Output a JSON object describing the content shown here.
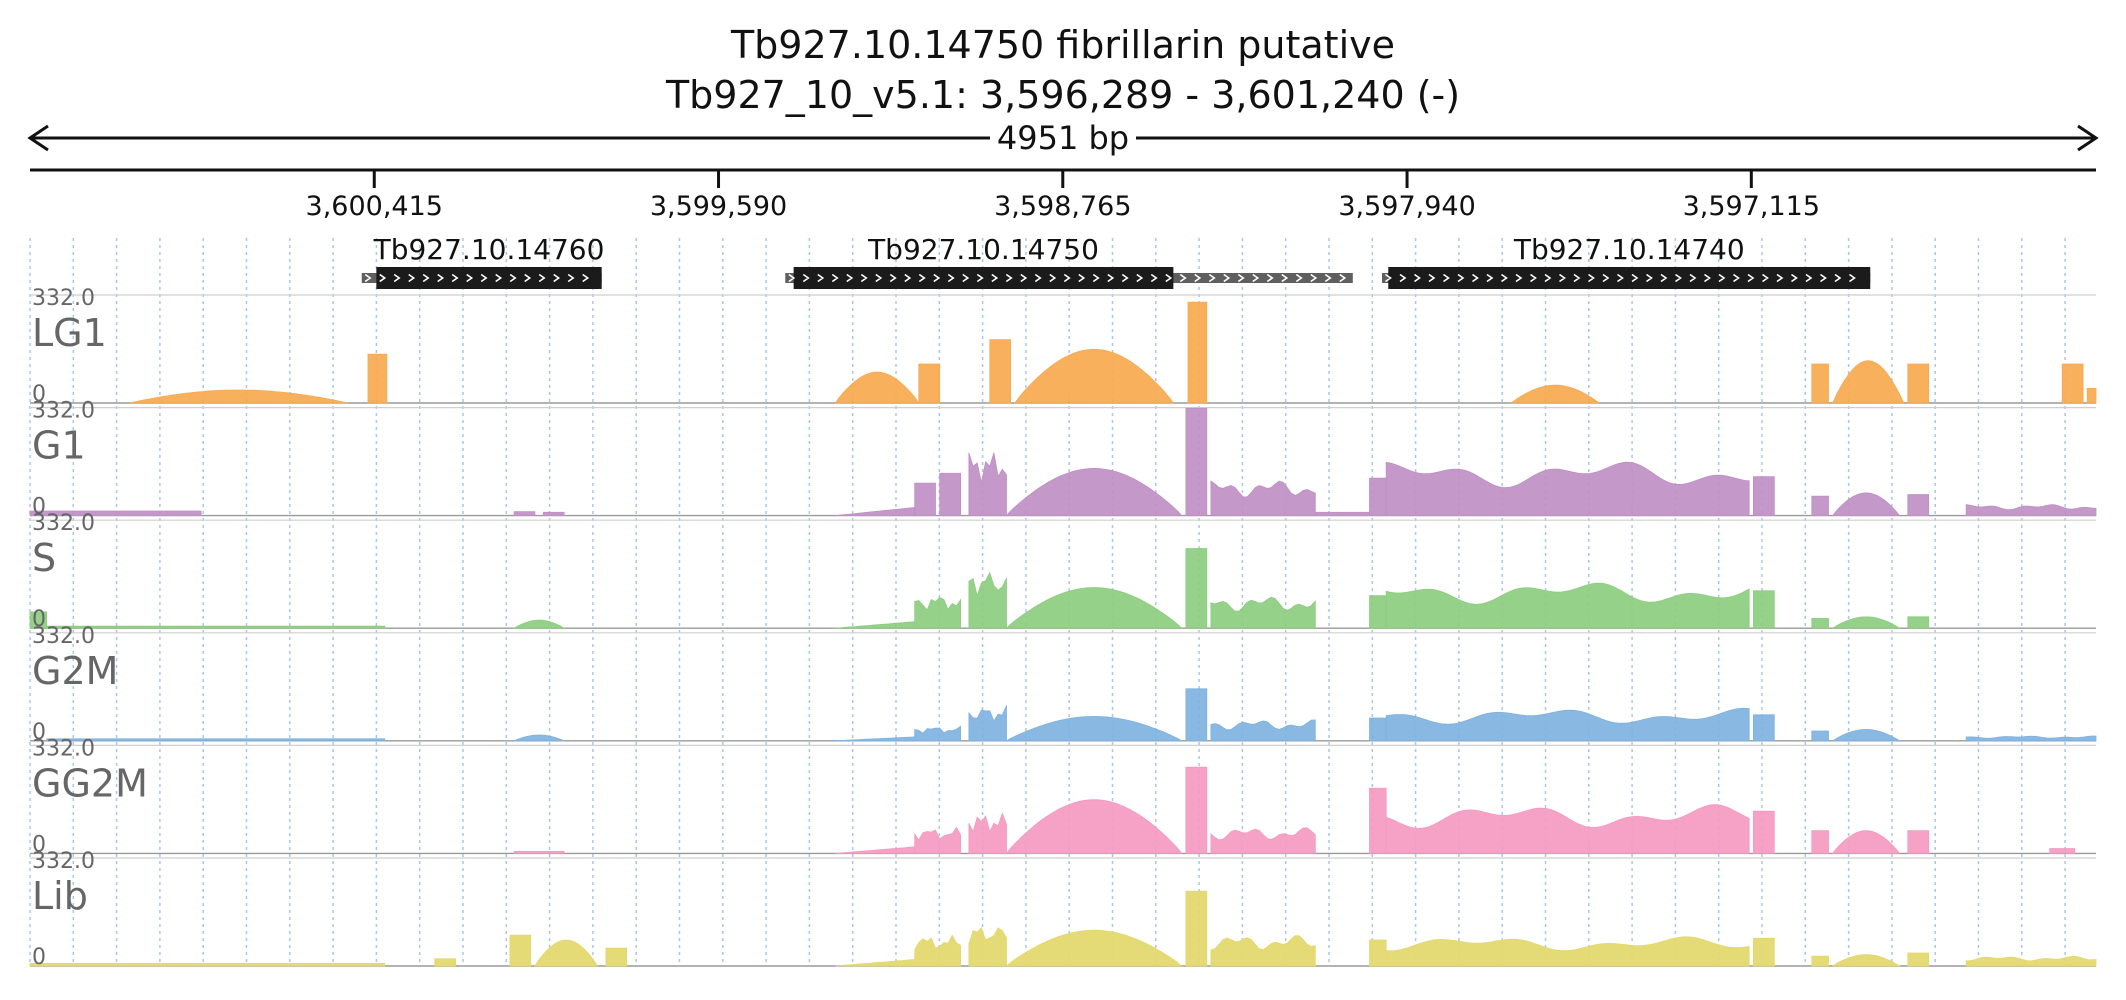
{
  "header": {
    "title_line1": "Tb927.10.14750  fibrillarin  putative",
    "title_line2": "Tb927_10_v5.1: 3,596,289 - 3,601,240 (-)",
    "span_label": "4951 bp"
  },
  "chart_data": {
    "type": "area",
    "locus": {
      "chromosome": "Tb927_10_v5.1",
      "start": 3596289,
      "end": 3601240,
      "strand": "-",
      "orientation": "reversed (left = 3,601,240)"
    },
    "ruler": {
      "ticks": [
        {
          "pos": 3600415,
          "label": "3,600,415"
        },
        {
          "pos": 3599590,
          "label": "3,599,590"
        },
        {
          "pos": 3598765,
          "label": "3,598,765"
        },
        {
          "pos": 3597940,
          "label": "3,597,940"
        },
        {
          "pos": 3597115,
          "label": "3,597,115"
        }
      ]
    },
    "genes": [
      {
        "name": "Tb927.10.14760",
        "arrow_start": 3600445,
        "arrow_end": 3599870,
        "cds_start": 3600410,
        "cds_end": 3599870
      },
      {
        "name": "Tb927.10.14750",
        "arrow_start": 3599430,
        "arrow_end": 3598070,
        "cds_start": 3599410,
        "cds_end": 3598500
      },
      {
        "name": "Tb927.10.14740",
        "arrow_start": 3598000,
        "arrow_end": 3596830,
        "cds_start": 3597985,
        "cds_end": 3596830
      }
    ],
    "grid": true,
    "y_range": [
      0,
      332.0
    ],
    "y_max_label": "332.0",
    "y_min_label": "0",
    "series": [
      {
        "name": "LG1",
        "color": "#f7a94f",
        "segments": [
          {
            "start": 3601000,
            "end": 3600480,
            "shape": "hump",
            "peak": 40
          },
          {
            "start": 3600430,
            "end": 3600385,
            "shape": "flat",
            "peak": 150
          },
          {
            "start": 3599310,
            "end": 3599110,
            "shape": "hump",
            "peak": 95
          },
          {
            "start": 3599110,
            "end": 3599060,
            "shape": "flat",
            "peak": 120
          },
          {
            "start": 3598940,
            "end": 3598890,
            "shape": "flat",
            "peak": 195
          },
          {
            "start": 3598880,
            "end": 3598500,
            "shape": "hump",
            "peak": 165
          },
          {
            "start": 3598465,
            "end": 3598420,
            "shape": "flat",
            "peak": 310
          },
          {
            "start": 3597690,
            "end": 3597480,
            "shape": "hump",
            "peak": 55
          },
          {
            "start": 3596970,
            "end": 3596930,
            "shape": "flat",
            "peak": 120
          },
          {
            "start": 3596920,
            "end": 3596750,
            "shape": "hump",
            "peak": 130
          },
          {
            "start": 3596740,
            "end": 3596690,
            "shape": "flat",
            "peak": 120
          },
          {
            "start": 3596370,
            "end": 3596320,
            "shape": "flat",
            "peak": 120
          },
          {
            "start": 3596310,
            "end": 3596289,
            "shape": "flat",
            "peak": 45
          }
        ]
      },
      {
        "name": "G1",
        "color": "#bf8fc4",
        "segments": [
          {
            "start": 3601240,
            "end": 3600830,
            "shape": "flat",
            "peak": 14
          },
          {
            "start": 3600080,
            "end": 3600030,
            "shape": "flat",
            "peak": 12
          },
          {
            "start": 3600010,
            "end": 3599960,
            "shape": "flat",
            "peak": 10
          },
          {
            "start": 3599310,
            "end": 3599120,
            "shape": "ramp",
            "peak": 25
          },
          {
            "start": 3599120,
            "end": 3599070,
            "shape": "flat",
            "peak": 100
          },
          {
            "start": 3599060,
            "end": 3599010,
            "shape": "flat",
            "peak": 130
          },
          {
            "start": 3598990,
            "end": 3598900,
            "shape": "ragged",
            "peak": 200
          },
          {
            "start": 3598900,
            "end": 3598480,
            "shape": "hump",
            "peak": 145
          },
          {
            "start": 3598470,
            "end": 3598420,
            "shape": "flat",
            "peak": 330
          },
          {
            "start": 3598410,
            "end": 3598160,
            "shape": "ragged",
            "peak": 110
          },
          {
            "start": 3598160,
            "end": 3598030,
            "shape": "flat",
            "peak": 10
          },
          {
            "start": 3598030,
            "end": 3597990,
            "shape": "flat",
            "peak": 115
          },
          {
            "start": 3597990,
            "end": 3597120,
            "shape": "ragged",
            "peak": 170
          },
          {
            "start": 3597110,
            "end": 3597060,
            "shape": "flat",
            "peak": 120
          },
          {
            "start": 3596970,
            "end": 3596930,
            "shape": "flat",
            "peak": 60
          },
          {
            "start": 3596920,
            "end": 3596760,
            "shape": "hump",
            "peak": 70
          },
          {
            "start": 3596740,
            "end": 3596690,
            "shape": "flat",
            "peak": 65
          },
          {
            "start": 3596600,
            "end": 3596289,
            "shape": "ragged",
            "peak": 35
          }
        ]
      },
      {
        "name": "S",
        "color": "#8ccd7f",
        "segments": [
          {
            "start": 3601240,
            "end": 3601200,
            "shape": "flat",
            "peak": 50
          },
          {
            "start": 3601200,
            "end": 3600390,
            "shape": "flat",
            "peak": 6
          },
          {
            "start": 3600080,
            "end": 3599960,
            "shape": "hump",
            "peak": 25
          },
          {
            "start": 3599310,
            "end": 3599120,
            "shape": "ramp",
            "peak": 20
          },
          {
            "start": 3599120,
            "end": 3599010,
            "shape": "ragged",
            "peak": 105
          },
          {
            "start": 3598990,
            "end": 3598900,
            "shape": "ragged",
            "peak": 185
          },
          {
            "start": 3598900,
            "end": 3598480,
            "shape": "hump",
            "peak": 125
          },
          {
            "start": 3598470,
            "end": 3598420,
            "shape": "flat",
            "peak": 245
          },
          {
            "start": 3598410,
            "end": 3598160,
            "shape": "ragged",
            "peak": 100
          },
          {
            "start": 3598030,
            "end": 3597990,
            "shape": "flat",
            "peak": 100
          },
          {
            "start": 3597990,
            "end": 3597120,
            "shape": "ragged",
            "peak": 145
          },
          {
            "start": 3597110,
            "end": 3597060,
            "shape": "flat",
            "peak": 115
          },
          {
            "start": 3596970,
            "end": 3596930,
            "shape": "flat",
            "peak": 30
          },
          {
            "start": 3596920,
            "end": 3596760,
            "shape": "hump",
            "peak": 35
          },
          {
            "start": 3596740,
            "end": 3596690,
            "shape": "flat",
            "peak": 35
          }
        ]
      },
      {
        "name": "G2M",
        "color": "#7fb2df",
        "segments": [
          {
            "start": 3601200,
            "end": 3600390,
            "shape": "flat",
            "peak": 6
          },
          {
            "start": 3600080,
            "end": 3599960,
            "shape": "hump",
            "peak": 18
          },
          {
            "start": 3599310,
            "end": 3599120,
            "shape": "ramp",
            "peak": 12
          },
          {
            "start": 3599120,
            "end": 3599010,
            "shape": "ragged",
            "peak": 45
          },
          {
            "start": 3598990,
            "end": 3598900,
            "shape": "ragged",
            "peak": 110
          },
          {
            "start": 3598900,
            "end": 3598480,
            "shape": "hump",
            "peak": 75
          },
          {
            "start": 3598470,
            "end": 3598420,
            "shape": "flat",
            "peak": 160
          },
          {
            "start": 3598410,
            "end": 3598160,
            "shape": "ragged",
            "peak": 65
          },
          {
            "start": 3598030,
            "end": 3597990,
            "shape": "flat",
            "peak": 70
          },
          {
            "start": 3597990,
            "end": 3597120,
            "shape": "ragged",
            "peak": 100
          },
          {
            "start": 3597110,
            "end": 3597060,
            "shape": "flat",
            "peak": 80
          },
          {
            "start": 3596970,
            "end": 3596930,
            "shape": "flat",
            "peak": 30
          },
          {
            "start": 3596920,
            "end": 3596760,
            "shape": "hump",
            "peak": 35
          },
          {
            "start": 3596600,
            "end": 3596289,
            "shape": "ragged",
            "peak": 15
          }
        ]
      },
      {
        "name": "GG2M",
        "color": "#f49ac1",
        "segments": [
          {
            "start": 3600080,
            "end": 3599960,
            "shape": "flat",
            "peak": 6
          },
          {
            "start": 3599310,
            "end": 3599120,
            "shape": "ramp",
            "peak": 20
          },
          {
            "start": 3599120,
            "end": 3599010,
            "shape": "ragged",
            "peak": 80
          },
          {
            "start": 3598990,
            "end": 3598900,
            "shape": "ragged",
            "peak": 125
          },
          {
            "start": 3598900,
            "end": 3598480,
            "shape": "hump",
            "peak": 165
          },
          {
            "start": 3598470,
            "end": 3598420,
            "shape": "flat",
            "peak": 265
          },
          {
            "start": 3598410,
            "end": 3598160,
            "shape": "ragged",
            "peak": 80
          },
          {
            "start": 3598030,
            "end": 3597990,
            "shape": "flat",
            "peak": 200
          },
          {
            "start": 3597990,
            "end": 3597120,
            "shape": "ragged",
            "peak": 150
          },
          {
            "start": 3597110,
            "end": 3597060,
            "shape": "flat",
            "peak": 130
          },
          {
            "start": 3596970,
            "end": 3596930,
            "shape": "flat",
            "peak": 70
          },
          {
            "start": 3596920,
            "end": 3596760,
            "shape": "hump",
            "peak": 70
          },
          {
            "start": 3596740,
            "end": 3596690,
            "shape": "flat",
            "peak": 70
          },
          {
            "start": 3596400,
            "end": 3596340,
            "shape": "flat",
            "peak": 15
          }
        ]
      },
      {
        "name": "Lib",
        "color": "#e3d86a",
        "segments": [
          {
            "start": 3601240,
            "end": 3600390,
            "shape": "flat",
            "peak": 8
          },
          {
            "start": 3600270,
            "end": 3600220,
            "shape": "flat",
            "peak": 22
          },
          {
            "start": 3600090,
            "end": 3600040,
            "shape": "flat",
            "peak": 95
          },
          {
            "start": 3600030,
            "end": 3599880,
            "shape": "hump",
            "peak": 80
          },
          {
            "start": 3599860,
            "end": 3599810,
            "shape": "flat",
            "peak": 55
          },
          {
            "start": 3599310,
            "end": 3599120,
            "shape": "ramp",
            "peak": 20
          },
          {
            "start": 3599120,
            "end": 3599010,
            "shape": "ragged",
            "peak": 95
          },
          {
            "start": 3598990,
            "end": 3598900,
            "shape": "ragged",
            "peak": 130
          },
          {
            "start": 3598900,
            "end": 3598480,
            "shape": "hump",
            "peak": 110
          },
          {
            "start": 3598470,
            "end": 3598420,
            "shape": "flat",
            "peak": 230
          },
          {
            "start": 3598410,
            "end": 3598160,
            "shape": "ragged",
            "peak": 95
          },
          {
            "start": 3598030,
            "end": 3597990,
            "shape": "flat",
            "peak": 80
          },
          {
            "start": 3597990,
            "end": 3597120,
            "shape": "ragged",
            "peak": 90
          },
          {
            "start": 3597110,
            "end": 3597060,
            "shape": "flat",
            "peak": 85
          },
          {
            "start": 3596970,
            "end": 3596930,
            "shape": "flat",
            "peak": 30
          },
          {
            "start": 3596920,
            "end": 3596760,
            "shape": "hump",
            "peak": 35
          },
          {
            "start": 3596740,
            "end": 3596690,
            "shape": "flat",
            "peak": 40
          },
          {
            "start": 3596600,
            "end": 3596289,
            "shape": "ragged",
            "peak": 30
          }
        ]
      }
    ]
  }
}
